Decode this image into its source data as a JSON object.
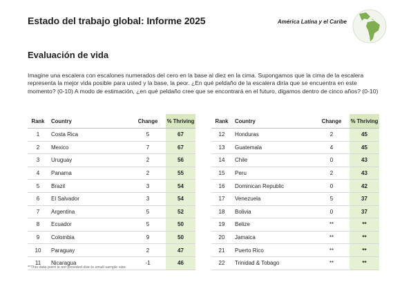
{
  "header": {
    "title": "Estado del trabajo global: Informe 2025",
    "region": "América Latina y el Caribe",
    "map_icon": "latin-america-map-icon"
  },
  "section": {
    "title": "Evaluación de vida",
    "intro": "Imagine una escalera con escalones numerados del cero en la base al diez en la cima. Supongamos que la cima de la escalera representa la mejor vida posible para usted y la base, la peor. ¿En qué peldaño de la escalera diría que se encuentra en este momento? (0-10) A modo de estimación, ¿en qué peldaño cree que se encontrará en el futuro, digamos dentro de cinco años? (0-10)"
  },
  "table": {
    "headers": {
      "rank": "Rank",
      "country": "Country",
      "change": "Change",
      "thriving": "% Thriving"
    },
    "left": [
      {
        "rank": "1",
        "country": "Costa Rica",
        "change": "5",
        "thriving": "67"
      },
      {
        "rank": "2",
        "country": "Mexico",
        "change": "7",
        "thriving": "67"
      },
      {
        "rank": "3",
        "country": "Uruguay",
        "change": "2",
        "thriving": "56"
      },
      {
        "rank": "4",
        "country": "Panama",
        "change": "2",
        "thriving": "55"
      },
      {
        "rank": "5",
        "country": "Brazil",
        "change": "3",
        "thriving": "54"
      },
      {
        "rank": "6",
        "country": "El Salvador",
        "change": "3",
        "thriving": "54"
      },
      {
        "rank": "7",
        "country": "Argentina",
        "change": "5",
        "thriving": "52"
      },
      {
        "rank": "8",
        "country": "Ecuador",
        "change": "5",
        "thriving": "50"
      },
      {
        "rank": "9",
        "country": "Colombia",
        "change": "9",
        "thriving": "50"
      },
      {
        "rank": "10",
        "country": "Paraguay",
        "change": "2",
        "thriving": "47"
      },
      {
        "rank": "11",
        "country": "Nicaragua",
        "change": "-1",
        "thriving": "46"
      }
    ],
    "right": [
      {
        "rank": "12",
        "country": "Honduras",
        "change": "2",
        "thriving": "45"
      },
      {
        "rank": "13",
        "country": "Guatemala",
        "change": "4",
        "thriving": "45"
      },
      {
        "rank": "14",
        "country": "Chile",
        "change": "0",
        "thriving": "43"
      },
      {
        "rank": "15",
        "country": "Peru",
        "change": "2",
        "thriving": "43"
      },
      {
        "rank": "16",
        "country": "Dominican Republic",
        "change": "0",
        "thriving": "42"
      },
      {
        "rank": "17",
        "country": "Venezuela",
        "change": "5",
        "thriving": "37"
      },
      {
        "rank": "18",
        "country": "Bolivia",
        "change": "0",
        "thriving": "37"
      },
      {
        "rank": "19",
        "country": "Belize",
        "change": "**",
        "thriving": "**"
      },
      {
        "rank": "20",
        "country": "Jamaica",
        "change": "**",
        "thriving": "**"
      },
      {
        "rank": "21",
        "country": "Puerto Rico",
        "change": "**",
        "thriving": "**"
      },
      {
        "rank": "22",
        "country": "Trinidad & Tobago",
        "change": "**",
        "thriving": "**"
      }
    ]
  },
  "footnote": "**This data point is not provided due to small sample size.",
  "colors": {
    "thriving_column": "#e6f0d2",
    "map_land": "#7fae4f"
  }
}
